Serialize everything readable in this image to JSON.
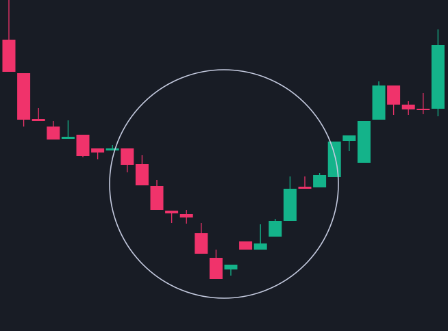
{
  "chart_data": {
    "type": "candlestick",
    "open": [
      426,
      377,
      310,
      299,
      281,
      287,
      267,
      264,
      267,
      244,
      212,
      176,
      171,
      143,
      107,
      90,
      131,
      119,
      138,
      161,
      211,
      210,
      225,
      278,
      246,
      309,
      359,
      331,
      325,
      325
    ],
    "high": [
      484,
      377,
      326,
      307,
      308,
      287,
      267,
      272,
      267,
      257,
      221,
      176,
      177,
      158,
      119,
      97,
      131,
      156,
      164,
      226,
      226,
      231,
      277,
      286,
      307,
      365,
      359,
      336,
      348,
      441
    ],
    "low": [
      379,
      299,
      307,
      280,
      281,
      254,
      251,
      264,
      232,
      213,
      177,
      158,
      157,
      113,
      76,
      81,
      119,
      119,
      138,
      161,
      208,
      210,
      225,
      263,
      246,
      309,
      316,
      316,
      317,
      314
    ],
    "close": [
      379,
      309,
      307,
      280,
      284,
      256,
      261,
      267,
      243,
      213,
      177,
      172,
      166,
      113,
      76,
      97,
      119,
      128,
      161,
      208,
      208,
      228,
      277,
      286,
      307,
      359,
      331,
      324,
      323,
      418
    ],
    "ylim": [
      0,
      484
    ],
    "up_color": "#14b38a",
    "down_color": "#f0336b"
  }
}
